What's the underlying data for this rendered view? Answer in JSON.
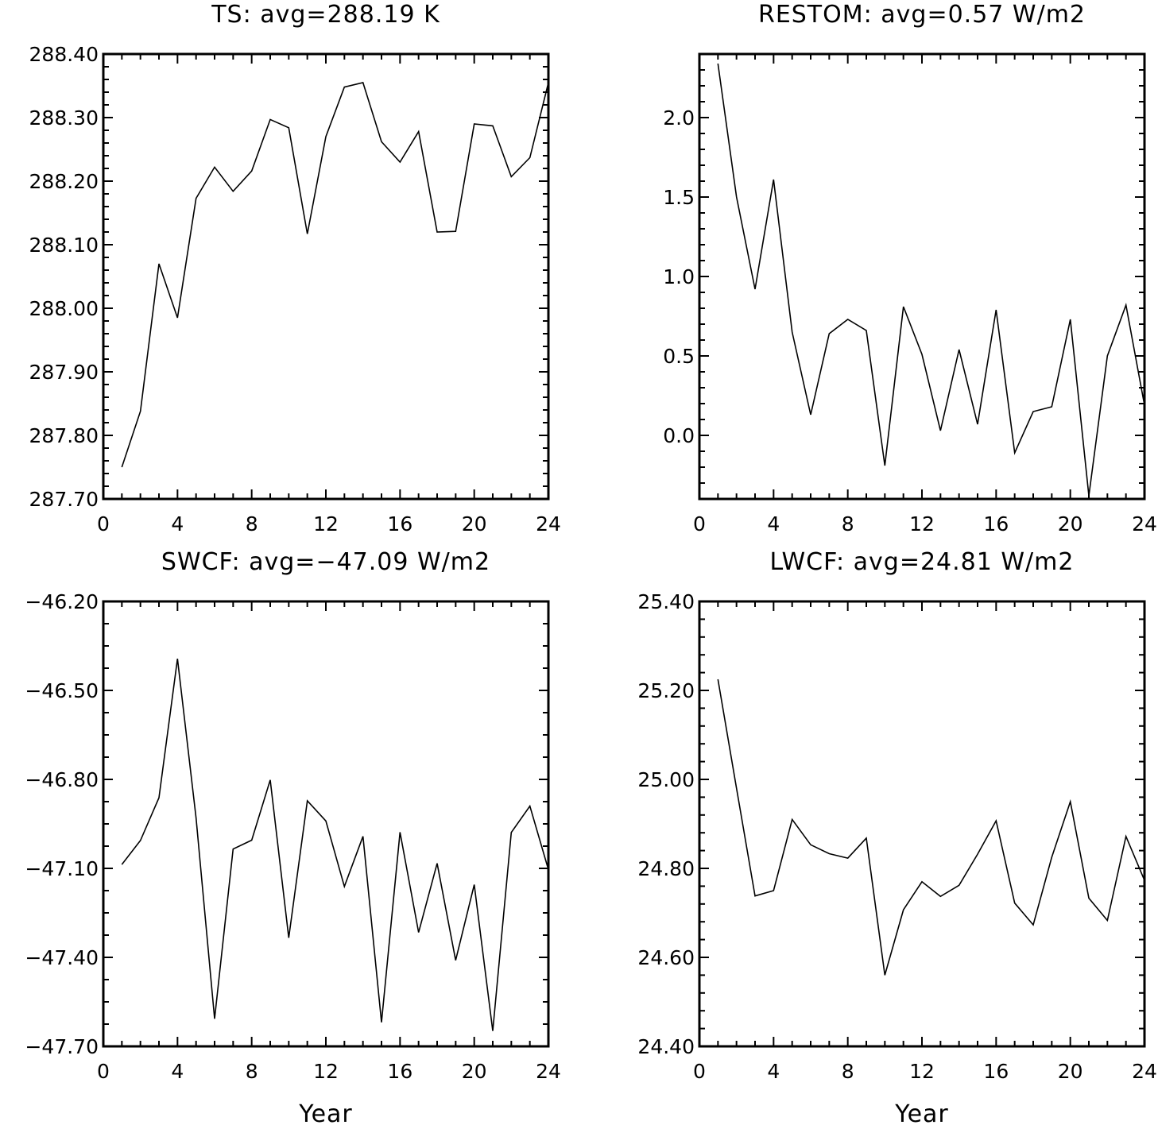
{
  "chart_data": [
    {
      "type": "line",
      "title": "TS: avg=288.19 K",
      "xlabel": "",
      "ylabel": "",
      "xlim": [
        0,
        24
      ],
      "ylim": [
        287.7,
        288.4
      ],
      "xticks": [
        0,
        4,
        8,
        12,
        16,
        20,
        24
      ],
      "xtick_labels": [
        "0",
        "4",
        "8",
        "12",
        "16",
        "20",
        "24"
      ],
      "yticks": [
        287.7,
        287.8,
        287.9,
        288.0,
        288.1,
        288.2,
        288.3,
        288.4
      ],
      "ytick_labels": [
        "287.70",
        "287.80",
        "287.90",
        "288.00",
        "288.10",
        "288.20",
        "288.30",
        "288.40"
      ],
      "grid": false,
      "x": [
        1,
        2,
        3,
        4,
        5,
        6,
        7,
        8,
        9,
        10,
        11,
        12,
        13,
        14,
        15,
        16,
        17,
        18,
        19,
        20,
        21,
        22,
        23,
        24
      ],
      "values": [
        287.75,
        287.838,
        288.07,
        287.985,
        288.173,
        288.222,
        288.184,
        288.216,
        288.297,
        288.284,
        288.117,
        288.27,
        288.348,
        288.355,
        288.262,
        288.23,
        288.278,
        288.12,
        288.121,
        288.29,
        288.287,
        288.207,
        288.237,
        288.355
      ]
    },
    {
      "type": "line",
      "title": "RESTOM: avg=0.57 W/m2",
      "xlabel": "",
      "ylabel": "",
      "xlim": [
        0,
        24
      ],
      "ylim": [
        -0.4,
        2.4
      ],
      "xticks": [
        0,
        4,
        8,
        12,
        16,
        20,
        24
      ],
      "xtick_labels": [
        "0",
        "4",
        "8",
        "12",
        "16",
        "20",
        "24"
      ],
      "yticks": [
        0.0,
        0.5,
        1.0,
        1.5,
        2.0
      ],
      "ytick_labels": [
        "0.0",
        "0.5",
        "1.0",
        "1.5",
        "2.0"
      ],
      "grid": false,
      "x": [
        1,
        2,
        3,
        4,
        5,
        6,
        7,
        8,
        9,
        10,
        11,
        12,
        13,
        14,
        15,
        16,
        17,
        18,
        19,
        20,
        21,
        22,
        23,
        24
      ],
      "values": [
        2.34,
        1.5,
        0.92,
        1.61,
        0.65,
        0.13,
        0.64,
        0.73,
        0.66,
        -0.19,
        0.81,
        0.51,
        0.03,
        0.54,
        0.07,
        0.79,
        -0.11,
        0.15,
        0.18,
        0.73,
        -0.38,
        0.5,
        0.82,
        0.19
      ]
    },
    {
      "type": "line",
      "title": "SWCF: avg=−47.09 W/m2",
      "xlabel": "Year",
      "ylabel": "",
      "xlim": [
        0,
        24
      ],
      "ylim": [
        -47.7,
        -46.2
      ],
      "xticks": [
        0,
        4,
        8,
        12,
        16,
        20,
        24
      ],
      "xtick_labels": [
        "0",
        "4",
        "8",
        "12",
        "16",
        "20",
        "24"
      ],
      "yticks": [
        -47.7,
        -47.4,
        -47.1,
        -46.8,
        -46.5,
        -46.2
      ],
      "ytick_labels": [
        "−47.70",
        "−47.40",
        "−47.10",
        "−46.80",
        "−46.50",
        "−46.20"
      ],
      "grid": false,
      "x": [
        1,
        2,
        3,
        4,
        5,
        6,
        7,
        8,
        9,
        10,
        11,
        12,
        13,
        14,
        15,
        16,
        17,
        18,
        19,
        20,
        21,
        22,
        23,
        24
      ],
      "values": [
        -47.087,
        -47.006,
        -46.862,
        -46.393,
        -46.93,
        -47.607,
        -47.035,
        -47.005,
        -46.802,
        -47.334,
        -46.872,
        -46.94,
        -47.161,
        -46.992,
        -47.619,
        -46.978,
        -47.316,
        -47.083,
        -47.41,
        -47.155,
        -47.648,
        -46.979,
        -46.89,
        -47.104
      ]
    },
    {
      "type": "line",
      "title": "LWCF: avg=24.81 W/m2",
      "xlabel": "Year",
      "ylabel": "",
      "xlim": [
        0,
        24
      ],
      "ylim": [
        24.4,
        25.4
      ],
      "xticks": [
        0,
        4,
        8,
        12,
        16,
        20,
        24
      ],
      "xtick_labels": [
        "0",
        "4",
        "8",
        "12",
        "16",
        "20",
        "24"
      ],
      "yticks": [
        24.4,
        24.6,
        24.8,
        25.0,
        25.2,
        25.4
      ],
      "ytick_labels": [
        "24.40",
        "24.60",
        "24.80",
        "25.00",
        "25.20",
        "25.40"
      ],
      "grid": false,
      "x": [
        1,
        2,
        3,
        4,
        5,
        6,
        7,
        8,
        9,
        10,
        11,
        12,
        13,
        14,
        15,
        16,
        17,
        18,
        19,
        20,
        21,
        22,
        23,
        24
      ],
      "values": [
        25.225,
        24.98,
        24.738,
        24.75,
        24.91,
        24.853,
        24.833,
        24.823,
        24.868,
        24.56,
        24.707,
        24.77,
        24.737,
        24.762,
        24.832,
        24.907,
        24.722,
        24.673,
        24.825,
        24.95,
        24.733,
        24.683,
        24.872,
        24.773
      ]
    }
  ]
}
